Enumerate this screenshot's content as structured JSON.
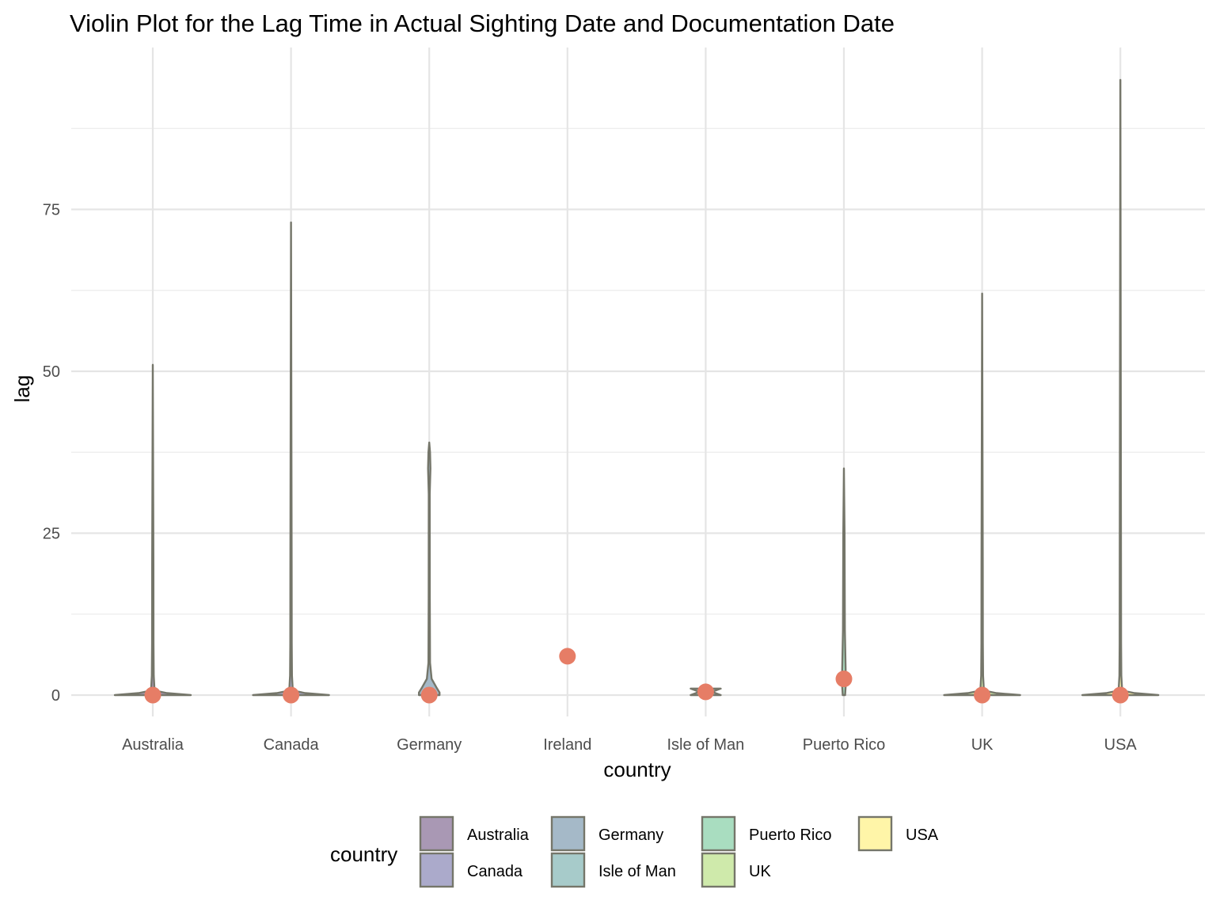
{
  "chart_data": {
    "type": "violin",
    "title": "Violin Plot for the Lag Time in Actual Sighting Date and Documentation Date",
    "xlabel": "country",
    "ylabel": "lag",
    "categories": [
      "Australia",
      "Canada",
      "Germany",
      "Ireland",
      "Isle of Man",
      "Puerto Rico",
      "UK",
      "USA"
    ],
    "ylim": [
      -4.5,
      100
    ],
    "y_ticks": [
      0,
      25,
      50,
      75
    ],
    "y_tick_labels": [
      "0",
      "25",
      "50",
      "75"
    ],
    "y_minor_ticks": [
      12.5,
      37.5,
      62.5,
      87.5
    ],
    "grid": true,
    "legend_title": "country",
    "legend_position": "bottom",
    "series": [
      {
        "name": "Australia",
        "fill": "#A998B4",
        "max": 51,
        "point": 0
      },
      {
        "name": "Canada",
        "fill": "#ABAACB",
        "max": 73,
        "point": 0
      },
      {
        "name": "Germany",
        "fill": "#A5B9C8",
        "max": 39,
        "point": 0
      },
      {
        "name": "Ireland",
        "fill": "#A7CBCA",
        "max": 6,
        "point": 6
      },
      {
        "name": "Isle of Man",
        "fill": "#A7CBCA",
        "max": 1,
        "point": 0.5
      },
      {
        "name": "Puerto Rico",
        "fill": "#A9DDC0",
        "max": 35,
        "point": 2.5
      },
      {
        "name": "UK",
        "fill": "#CFEAAB",
        "max": 62,
        "point": 0
      },
      {
        "name": "USA",
        "fill": "#FFF5A8",
        "max": 95,
        "point": 0
      }
    ],
    "point_color": "#E67D66",
    "outline_color": "#75766A"
  }
}
